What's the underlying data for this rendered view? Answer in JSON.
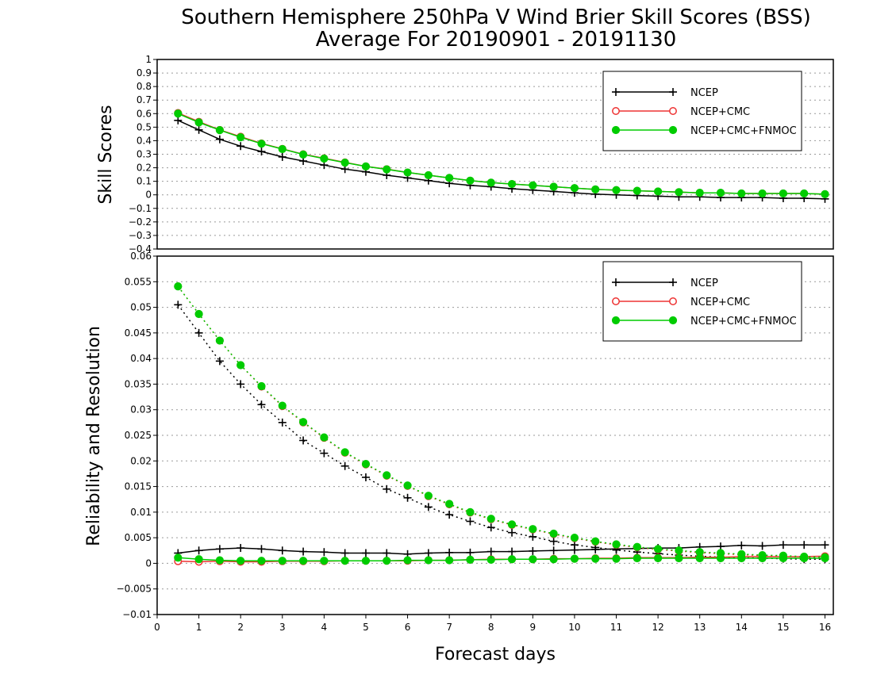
{
  "chart_data": [
    {
      "type": "line",
      "title": "Southern Hemisphere 250hPa V Wind Brier Skill Scores (BSS)",
      "subtitle": "Average For 20190901 - 20191130",
      "ylabel": "Skill Scores",
      "xlabel": "",
      "xlim": [
        0,
        16.2
      ],
      "ylim": [
        -0.4,
        1
      ],
      "ytick_labels": [
        "−0.4",
        "−0.3",
        "−0.2",
        "−0.1",
        "0",
        "0.1",
        "0.2",
        "0.3",
        "0.4",
        "0.5",
        "0.6",
        "0.7",
        "0.8",
        "0.9",
        "1"
      ],
      "ytick_values": [
        -0.4,
        -0.3,
        -0.2,
        -0.1,
        0,
        0.1,
        0.2,
        0.3,
        0.4,
        0.5,
        0.6,
        0.7,
        0.8,
        0.9,
        1
      ],
      "grid": true,
      "legend_position": "top-right",
      "x": [
        0.5,
        1,
        1.5,
        2,
        2.5,
        3,
        3.5,
        4,
        4.5,
        5,
        5.5,
        6,
        6.5,
        7,
        7.5,
        8,
        8.5,
        9,
        9.5,
        10,
        10.5,
        11,
        11.5,
        12,
        12.5,
        13,
        13.5,
        14,
        14.5,
        15,
        15.5,
        16
      ],
      "series": [
        {
          "name": "NCEP",
          "color": "#000000",
          "marker": "plus",
          "values": [
            0.55,
            0.48,
            0.41,
            0.36,
            0.32,
            0.28,
            0.25,
            0.22,
            0.19,
            0.17,
            0.145,
            0.125,
            0.105,
            0.085,
            0.07,
            0.06,
            0.045,
            0.035,
            0.025,
            0.015,
            0.005,
            0.0,
            -0.005,
            -0.01,
            -0.015,
            -0.015,
            -0.02,
            -0.02,
            -0.02,
            -0.025,
            -0.025,
            -0.03
          ]
        },
        {
          "name": "NCEP+CMC",
          "color": "#ee3333",
          "marker": "open-circle",
          "values": [
            0.605,
            0.54,
            0.48,
            0.43,
            0.38,
            0.34,
            0.3,
            0.27,
            0.24,
            0.21,
            0.19,
            0.165,
            0.145,
            0.125,
            0.105,
            0.09,
            0.08,
            0.07,
            0.06,
            0.05,
            0.04,
            0.035,
            0.03,
            0.025,
            0.02,
            0.015,
            0.015,
            0.01,
            0.01,
            0.01,
            0.01,
            0.005
          ]
        },
        {
          "name": "NCEP+CMC+FNMOC",
          "color": "#00cc00",
          "marker": "filled-circle",
          "values": [
            0.6,
            0.535,
            0.478,
            0.425,
            0.378,
            0.338,
            0.298,
            0.268,
            0.238,
            0.21,
            0.188,
            0.165,
            0.145,
            0.125,
            0.105,
            0.09,
            0.08,
            0.07,
            0.06,
            0.05,
            0.04,
            0.035,
            0.03,
            0.025,
            0.02,
            0.015,
            0.015,
            0.01,
            0.01,
            0.01,
            0.01,
            0.005
          ]
        }
      ]
    },
    {
      "type": "line",
      "ylabel": "Reliability and Resolution",
      "xlabel": "Forecast days",
      "xlim": [
        0,
        16.2
      ],
      "ylim": [
        -0.01,
        0.06
      ],
      "ytick_labels": [
        "−0.01",
        "−0.005",
        "0",
        "0.005",
        "0.01",
        "0.015",
        "0.02",
        "0.025",
        "0.03",
        "0.035",
        "0.04",
        "0.045",
        "0.05",
        "0.055",
        "0.06"
      ],
      "ytick_values": [
        -0.01,
        -0.005,
        0,
        0.005,
        0.01,
        0.015,
        0.02,
        0.025,
        0.03,
        0.035,
        0.04,
        0.045,
        0.05,
        0.055,
        0.06
      ],
      "xtick_labels": [
        "0",
        "1",
        "2",
        "3",
        "4",
        "5",
        "6",
        "7",
        "8",
        "9",
        "10",
        "11",
        "12",
        "13",
        "14",
        "15",
        "16"
      ],
      "xtick_values": [
        0,
        1,
        2,
        3,
        4,
        5,
        6,
        7,
        8,
        9,
        10,
        11,
        12,
        13,
        14,
        15,
        16
      ],
      "grid": true,
      "legend_position": "top-right",
      "x": [
        0.5,
        1,
        1.5,
        2,
        2.5,
        3,
        3.5,
        4,
        4.5,
        5,
        5.5,
        6,
        6.5,
        7,
        7.5,
        8,
        8.5,
        9,
        9.5,
        10,
        10.5,
        11,
        11.5,
        12,
        12.5,
        13,
        13.5,
        14,
        14.5,
        15,
        15.5,
        16
      ],
      "series": [
        {
          "name": "NCEP",
          "color": "#000000",
          "marker": "plus",
          "line": "solid",
          "values": [
            0.002,
            0.0025,
            0.0028,
            0.003,
            0.0028,
            0.0025,
            0.0023,
            0.0022,
            0.002,
            0.002,
            0.002,
            0.0018,
            0.002,
            0.0021,
            0.0021,
            0.0023,
            0.0023,
            0.0024,
            0.0025,
            0.0026,
            0.0027,
            0.0028,
            0.0029,
            0.003,
            0.003,
            0.0032,
            0.0033,
            0.0035,
            0.0034,
            0.0036,
            0.0036,
            0.0036
          ]
        },
        {
          "name": "NCEP",
          "color": "#000000",
          "marker": "plus",
          "line": "dotted",
          "values": [
            0.0505,
            0.045,
            0.0395,
            0.035,
            0.031,
            0.0275,
            0.024,
            0.0215,
            0.019,
            0.0168,
            0.0145,
            0.0128,
            0.011,
            0.0095,
            0.0082,
            0.007,
            0.006,
            0.0052,
            0.0043,
            0.0036,
            0.0031,
            0.0026,
            0.0022,
            0.0019,
            0.0016,
            0.0014,
            0.0012,
            0.0011,
            0.001,
            0.0009,
            0.0008,
            0.0008
          ]
        },
        {
          "name": "NCEP+CMC",
          "color": "#ee3333",
          "marker": "open-circle",
          "line": "solid",
          "values": [
            0.0004,
            0.0003,
            0.0004,
            0.0003,
            0.0003,
            0.0004,
            0.0004,
            0.0004,
            0.0005,
            0.0005,
            0.0005,
            0.0005,
            0.0006,
            0.0006,
            0.0007,
            0.0008,
            0.0008,
            0.0008,
            0.0009,
            0.0009,
            0.001,
            0.001,
            0.0011,
            0.0011,
            0.0011,
            0.0012,
            0.0012,
            0.0013,
            0.0013,
            0.0013,
            0.0013,
            0.0014
          ]
        },
        {
          "name": "NCEP+CMC",
          "color": "#ee3333",
          "marker": "open-circle",
          "line": "dotted",
          "values": [
            0.0541,
            0.0487,
            0.0435,
            0.0387,
            0.0345,
            0.0307,
            0.0275,
            0.0245,
            0.0216,
            0.0193,
            0.0171,
            0.0151,
            0.0131,
            0.0115,
            0.0099,
            0.0086,
            0.0075,
            0.0066,
            0.0057,
            0.0049,
            0.0042,
            0.0036,
            0.0031,
            0.0027,
            0.0024,
            0.0021,
            0.0019,
            0.0017,
            0.0015,
            0.0014,
            0.0012,
            0.0011
          ]
        },
        {
          "name": "NCEP+CMC+FNMOC",
          "color": "#00cc00",
          "marker": "filled-circle",
          "line": "solid",
          "values": [
            0.0011,
            0.0008,
            0.0006,
            0.0005,
            0.0005,
            0.0005,
            0.0005,
            0.0005,
            0.0005,
            0.0005,
            0.0005,
            0.0006,
            0.0006,
            0.0006,
            0.0007,
            0.0007,
            0.0008,
            0.0008,
            0.0008,
            0.0009,
            0.0009,
            0.0009,
            0.001,
            0.001,
            0.001,
            0.001,
            0.001,
            0.001,
            0.001,
            0.001,
            0.001,
            0.001
          ]
        },
        {
          "name": "NCEP+CMC+FNMOC",
          "color": "#00cc00",
          "marker": "filled-circle",
          "line": "dotted",
          "values": [
            0.0541,
            0.0487,
            0.0435,
            0.0387,
            0.0346,
            0.0308,
            0.0276,
            0.0246,
            0.0217,
            0.0194,
            0.0172,
            0.0152,
            0.0132,
            0.0116,
            0.01,
            0.0087,
            0.0076,
            0.0067,
            0.0058,
            0.005,
            0.0043,
            0.0037,
            0.0032,
            0.0028,
            0.0025,
            0.0022,
            0.002,
            0.0018,
            0.0016,
            0.0015,
            0.0013,
            0.0012
          ]
        }
      ]
    }
  ]
}
